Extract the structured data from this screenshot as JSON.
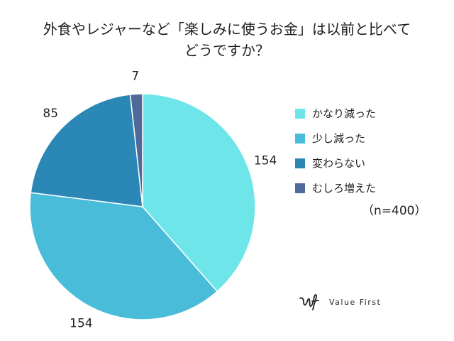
{
  "chart_data": {
    "type": "pie",
    "title_lines": [
      "外食やレジャーなど「楽しみに使うお金」は以前と比べて",
      "どうですか？"
    ],
    "categories": [
      "かなり減った",
      "少し減った",
      "変わらない",
      "むしろ増えた"
    ],
    "values": [
      154,
      154,
      85,
      7
    ],
    "colors": [
      "#6ee6e9",
      "#48bcd8",
      "#2b87b5",
      "#4f6a9a"
    ],
    "legend_position": "right",
    "note": "（n=400）"
  },
  "brand": {
    "name": "Value First"
  }
}
